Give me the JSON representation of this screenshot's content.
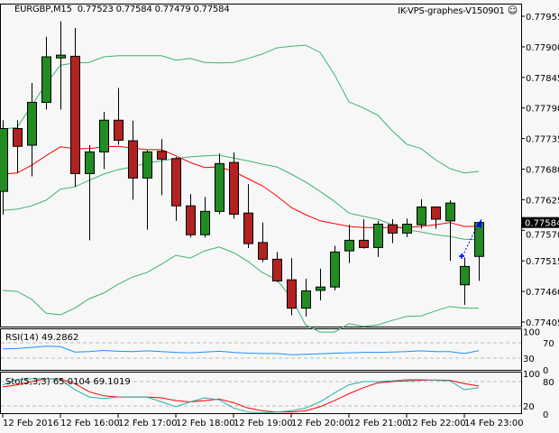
{
  "header": {
    "symbol_timeframe": "EURGBP,M15",
    "ohlc_readout": "0.77523 0.77584 0.77479 0.77584",
    "expert_name": "IK-VPS-graphes-V150901",
    "expert_icon": "smiley-face-icon"
  },
  "colors": {
    "background": "#f7f7f7",
    "bull_candle": "#228b22",
    "bear_candle": "#b22222",
    "bollinger": "#3cb371",
    "moving_average": "#ff0000",
    "rsi": "#1e90ff",
    "stoch_main": "#20b2aa",
    "stoch_signal": "#ff0000",
    "trade_arrow": "#0000ff"
  },
  "chart_data": [
    {
      "type": "candlestick",
      "title": "EURGBP,M15",
      "y_ticks": [
        "0.77955",
        "0.77900",
        "0.77845",
        "0.77790",
        "0.77735",
        "0.77680",
        "0.77625",
        "0.77570",
        "0.77515",
        "0.77460",
        "0.77405"
      ],
      "ylim": [
        0.774,
        0.7796
      ],
      "current_price": "0.77584",
      "x_tick_labels": [
        "12 Feb 2016",
        "12 Feb 16:00",
        "12 Feb 17:00",
        "12 Feb 18:00",
        "12 Feb 19:00",
        "12 Feb 20:00",
        "12 Feb 21:00",
        "12 Feb 22:00",
        "14 Feb 23:00"
      ],
      "x_tick_every_n_bars": 4,
      "candles": [
        [
          0.7764,
          0.77768,
          0.77598,
          0.77753
        ],
        [
          0.77753,
          0.77768,
          0.77673,
          0.77721
        ],
        [
          0.77723,
          0.77835,
          0.77667,
          0.778
        ],
        [
          0.778,
          0.77918,
          0.77787,
          0.77882
        ],
        [
          0.7788,
          0.77946,
          0.77787,
          0.77885
        ],
        [
          0.77883,
          0.77934,
          0.77648,
          0.77672
        ],
        [
          0.77672,
          0.77723,
          0.77552,
          0.77711
        ],
        [
          0.77711,
          0.77783,
          0.7768,
          0.77768
        ],
        [
          0.77768,
          0.77826,
          0.77724,
          0.77732
        ],
        [
          0.77731,
          0.77767,
          0.77625,
          0.77664
        ],
        [
          0.77664,
          0.77714,
          0.77571,
          0.77711
        ],
        [
          0.77712,
          0.77734,
          0.77633,
          0.77698
        ],
        [
          0.77699,
          0.77702,
          0.77587,
          0.77614
        ],
        [
          0.77614,
          0.77635,
          0.77557,
          0.77562
        ],
        [
          0.77562,
          0.7763,
          0.77557,
          0.77604
        ],
        [
          0.77604,
          0.77708,
          0.77599,
          0.7769
        ],
        [
          0.77692,
          0.7771,
          0.77591,
          0.77599
        ],
        [
          0.77601,
          0.77653,
          0.77538,
          0.77546
        ],
        [
          0.77548,
          0.77584,
          0.77513,
          0.77518
        ],
        [
          0.77518,
          0.77531,
          0.77477,
          0.77479
        ],
        [
          0.77481,
          0.7752,
          0.77417,
          0.7743
        ],
        [
          0.7743,
          0.77483,
          0.77415,
          0.77461
        ],
        [
          0.77462,
          0.77501,
          0.77444,
          0.77468
        ],
        [
          0.77468,
          0.77542,
          0.77462,
          0.77531
        ],
        [
          0.77533,
          0.7758,
          0.77511,
          0.77552
        ],
        [
          0.77552,
          0.7759,
          0.77537,
          0.77539
        ],
        [
          0.77539,
          0.77587,
          0.77522,
          0.77581
        ],
        [
          0.7758,
          0.7759,
          0.77547,
          0.77565
        ],
        [
          0.77565,
          0.77591,
          0.77558,
          0.77581
        ],
        [
          0.7758,
          0.77626,
          0.77573,
          0.77612
        ],
        [
          0.77612,
          0.77612,
          0.77573,
          0.7759
        ],
        [
          0.77587,
          0.77624,
          0.77515,
          0.77619
        ],
        [
          0.77472,
          0.77521,
          0.77436,
          0.77505
        ],
        [
          0.77523,
          0.77584,
          0.77479,
          0.77584
        ]
      ],
      "candle_format": "open, high, low, close",
      "bollinger_upper": [
        0.77752,
        0.77755,
        0.77794,
        0.77833,
        0.77867,
        0.77871,
        0.77872,
        0.77882,
        0.77884,
        0.77884,
        0.77884,
        0.77884,
        0.77876,
        0.77879,
        0.77872,
        0.77871,
        0.77872,
        0.77879,
        0.77887,
        0.77898,
        0.77901,
        0.77903,
        0.7789,
        0.7785,
        0.77801,
        0.7779,
        0.77777,
        0.77749,
        0.77725,
        0.77717,
        0.77697,
        0.77681,
        0.77673,
        0.77676
      ],
      "bollinger_middle": [
        0.77606,
        0.77608,
        0.77614,
        0.77624,
        0.77644,
        0.77648,
        0.7766,
        0.77671,
        0.77679,
        0.77684,
        0.77691,
        0.77695,
        0.77699,
        0.77702,
        0.77704,
        0.77705,
        0.777,
        0.77695,
        0.77689,
        0.77684,
        0.77671,
        0.77657,
        0.7764,
        0.77622,
        0.77601,
        0.77595,
        0.7759,
        0.7758,
        0.77571,
        0.77567,
        0.77562,
        0.77559,
        0.77554,
        0.77553
      ],
      "bollinger_lower": [
        0.77462,
        0.7746,
        0.77446,
        0.77421,
        0.77418,
        0.7743,
        0.77447,
        0.77457,
        0.77473,
        0.77486,
        0.77494,
        0.77509,
        0.77525,
        0.7752,
        0.77533,
        0.7754,
        0.7753,
        0.77514,
        0.77494,
        0.77481,
        0.77449,
        0.774,
        0.77387,
        0.77387,
        0.77402,
        0.77397,
        0.774,
        0.77408,
        0.77415,
        0.77416,
        0.77425,
        0.77433,
        0.7743,
        0.7743
      ],
      "moving_average": [
        0.77671,
        0.77673,
        0.77687,
        0.77704,
        0.7772,
        0.77717,
        0.77717,
        0.7772,
        0.77721,
        0.77718,
        0.77715,
        0.77715,
        0.77704,
        0.77692,
        0.77683,
        0.77684,
        0.77676,
        0.77663,
        0.7765,
        0.77632,
        0.77611,
        0.77598,
        0.77587,
        0.77582,
        0.77577,
        0.77575,
        0.77575,
        0.77575,
        0.77575,
        0.77577,
        0.7758,
        0.77584,
        0.77577,
        0.77577
      ]
    },
    {
      "type": "line",
      "title": "RSI(14) 49.2862",
      "y_ticks": [
        "100",
        "70",
        "30",
        "0"
      ],
      "levels": [
        70,
        30
      ],
      "ylim": [
        0,
        100
      ],
      "values": [
        54,
        55,
        58,
        61,
        60,
        46,
        47,
        50,
        48,
        47,
        49,
        47,
        45,
        44,
        46,
        48,
        45,
        43,
        42,
        42,
        39,
        40,
        41,
        43,
        44,
        45,
        45,
        46,
        47,
        49,
        47,
        47,
        42,
        49.29
      ]
    },
    {
      "type": "line",
      "title": "Sto(5,3,3) 65.0104 69.1019",
      "y_ticks": [
        "100",
        "80",
        "20",
        "0"
      ],
      "levels": [
        80,
        20
      ],
      "ylim": [
        0,
        100
      ],
      "series": [
        {
          "values": [
            72,
            85,
            87,
            87,
            85,
            60,
            42,
            38,
            42,
            42,
            42,
            30,
            18,
            30,
            40,
            35,
            15,
            5,
            3,
            5,
            8,
            15,
            30,
            52,
            72,
            80,
            80,
            82,
            85,
            85,
            83,
            82,
            60,
            65.01
          ]
        },
        {
          "values": [
            67,
            72,
            80,
            87,
            86,
            75,
            55,
            45,
            42,
            42,
            42,
            40,
            33,
            30,
            33,
            37,
            28,
            15,
            8,
            5,
            5,
            8,
            18,
            33,
            50,
            65,
            77,
            80,
            82,
            83,
            84,
            83,
            75,
            69.1
          ]
        }
      ]
    }
  ]
}
